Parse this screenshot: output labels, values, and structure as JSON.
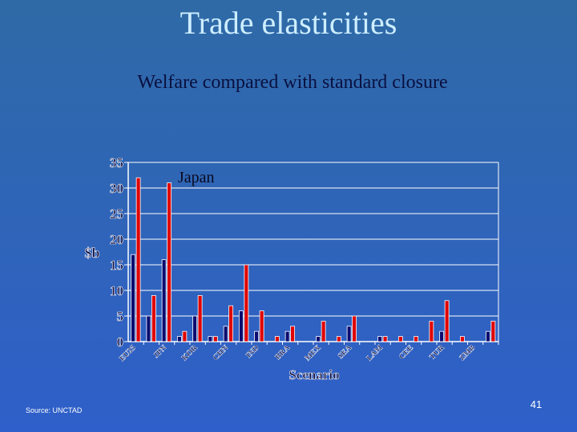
{
  "chart_data": {
    "type": "bar",
    "title": "Trade elasticities",
    "subtitle": "Welfare compared with standard closure",
    "annotation": "Japan",
    "ylabel": "$b",
    "xlabel": "Scenario",
    "categories": [
      "EU25",
      null,
      "JPN",
      null,
      "KOR",
      null,
      "CHN",
      null,
      "IND",
      null,
      "BRA",
      null,
      "MEX",
      null,
      "SEA",
      null,
      "LAM",
      null,
      "CEE",
      null,
      "TUR",
      null,
      "ZMB",
      null
    ],
    "series": [
      {
        "color": "#0b0b70",
        "values": [
          17,
          5,
          16,
          1,
          5,
          1,
          3,
          6,
          2,
          0,
          2,
          0,
          1,
          0,
          3,
          0,
          1,
          0,
          0,
          0,
          2,
          0,
          0,
          2
        ]
      },
      {
        "color": "#e00000",
        "values": [
          32,
          9,
          31,
          2,
          9,
          1,
          7,
          15,
          6,
          1,
          3,
          0,
          4,
          1,
          5,
          0,
          1,
          1,
          1,
          4,
          8,
          1,
          0,
          4
        ]
      }
    ],
    "ylim": [
      0,
      35
    ],
    "yticks": [
      0,
      5,
      10,
      15,
      20,
      25,
      30,
      35
    ]
  },
  "footer": {
    "source": "Source: UNCTAD",
    "page_number": "41"
  }
}
